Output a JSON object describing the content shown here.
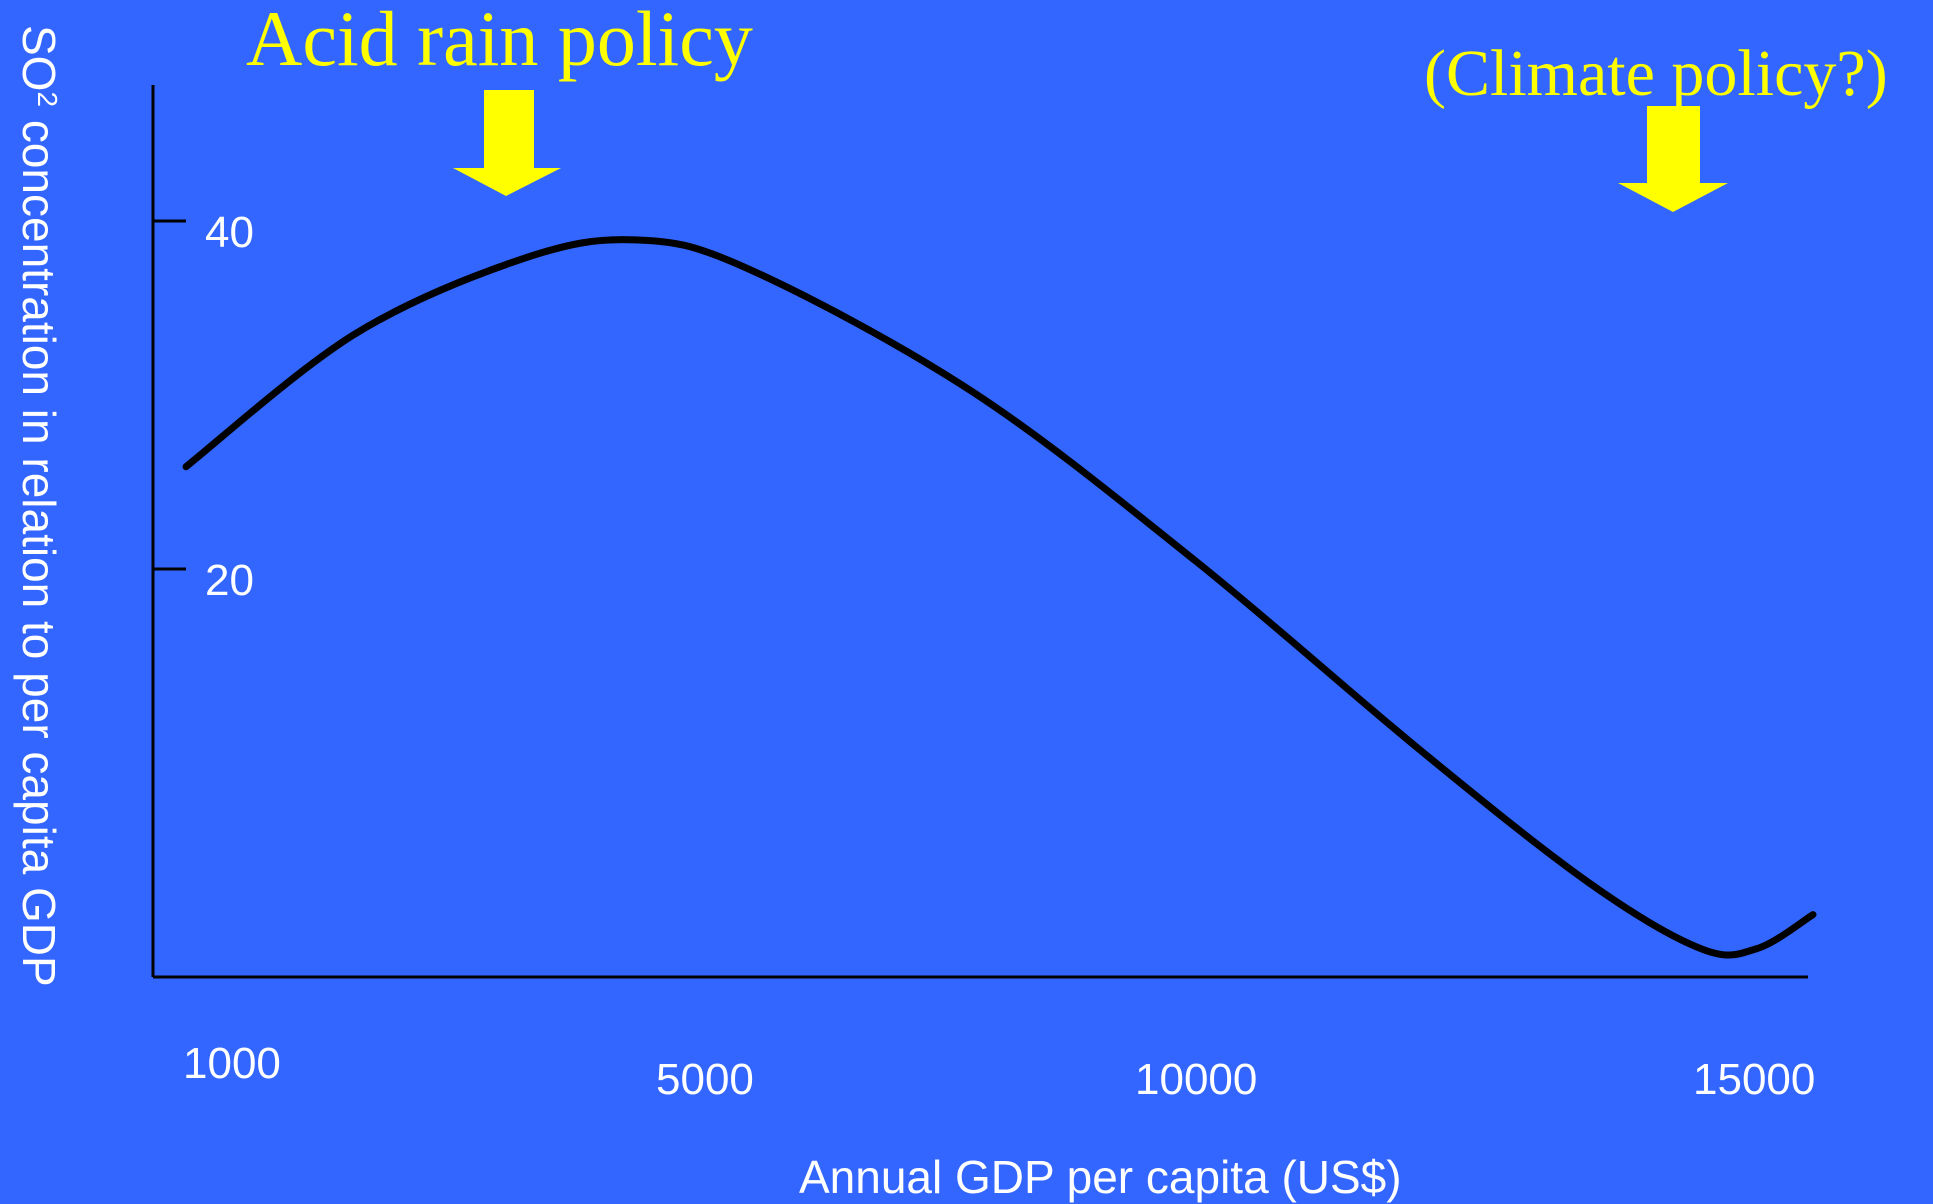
{
  "colors": {
    "background": "#3366ff",
    "curve": "#000000",
    "annotation": "#ffff00",
    "text": "#ffffff"
  },
  "chart_data": {
    "type": "line",
    "xlabel": "Annual GDP per capita (US$)",
    "ylabel_prefix": "SO",
    "ylabel_superscript": "2",
    "ylabel_rest": " concentration in relation to per capita GDP",
    "x_ticks": [
      "1000",
      "5000",
      "10000",
      "15000"
    ],
    "y_ticks": [
      "40",
      "20"
    ],
    "xlim": [
      1000,
      15500
    ],
    "ylim": [
      0,
      48
    ],
    "grid": false,
    "series": [
      {
        "points": [
          {
            "x": 1000,
            "y": 27
          },
          {
            "x": 2500,
            "y": 34
          },
          {
            "x": 4000,
            "y": 38
          },
          {
            "x": 5000,
            "y": 39
          },
          {
            "x": 6000,
            "y": 37.5
          },
          {
            "x": 8000,
            "y": 31
          },
          {
            "x": 10000,
            "y": 22
          },
          {
            "x": 12000,
            "y": 12
          },
          {
            "x": 13500,
            "y": 5
          },
          {
            "x": 14500,
            "y": 1.5
          },
          {
            "x": 15000,
            "y": 1.5
          },
          {
            "x": 15500,
            "y": 3.3
          }
        ]
      }
    ],
    "annotations": [
      {
        "text": "Acid rain policy",
        "x": 4000,
        "arrow": "down"
      },
      {
        "text": "(Climate policy?)",
        "x": 14500,
        "arrow": "down"
      }
    ]
  }
}
